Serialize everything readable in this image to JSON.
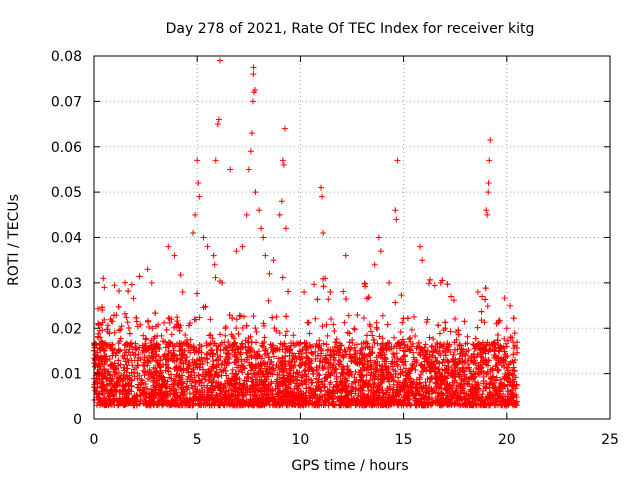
{
  "chart_data": {
    "type": "scatter",
    "title": "Day 278 of 2021, Rate Of TEC Index for receiver kitg",
    "xlabel": "GPS time / hours",
    "ylabel": "ROTI / TECUs",
    "xlim": [
      0,
      25
    ],
    "ylim": [
      0,
      0.08
    ],
    "x_ticks": [
      "0",
      "5",
      "10",
      "15",
      "20",
      "25"
    ],
    "y_ticks": [
      "0",
      "0.01",
      "0.02",
      "0.03",
      "0.04",
      "0.05",
      "0.06",
      "0.07",
      "0.08"
    ],
    "grid": true,
    "marker": "+",
    "marker_color": "#ff0000",
    "series": [
      {
        "name": "ROTI",
        "x_range": [
          0,
          20.5
        ],
        "band_description": "dense cloud of points between about 0.002 and 0.02 TECUs for the whole 0–20.5 h span",
        "points": [
          [
            0.1,
            0.012
          ],
          [
            0.3,
            0.018
          ],
          [
            0.4,
            0.024
          ],
          [
            0.45,
            0.031
          ],
          [
            0.5,
            0.029
          ],
          [
            0.8,
            0.022
          ],
          [
            1.0,
            0.019
          ],
          [
            2.6,
            0.033
          ],
          [
            2.8,
            0.03
          ],
          [
            3.6,
            0.038
          ],
          [
            3.9,
            0.036
          ],
          [
            4.3,
            0.028
          ],
          [
            4.8,
            0.041
          ],
          [
            4.9,
            0.045
          ],
          [
            5.0,
            0.057
          ],
          [
            5.05,
            0.052
          ],
          [
            5.1,
            0.049
          ],
          [
            5.3,
            0.04
          ],
          [
            5.5,
            0.038
          ],
          [
            5.8,
            0.036
          ],
          [
            5.85,
            0.034
          ],
          [
            5.9,
            0.057
          ],
          [
            6.0,
            0.065
          ],
          [
            6.05,
            0.066
          ],
          [
            6.1,
            0.079
          ],
          [
            6.6,
            0.055
          ],
          [
            6.9,
            0.037
          ],
          [
            7.2,
            0.038
          ],
          [
            7.4,
            0.045
          ],
          [
            7.5,
            0.055
          ],
          [
            7.6,
            0.059
          ],
          [
            7.65,
            0.063
          ],
          [
            7.7,
            0.07
          ],
          [
            7.75,
            0.072
          ],
          [
            7.8,
            0.0725
          ],
          [
            7.72,
            0.076
          ],
          [
            7.73,
            0.0775
          ],
          [
            7.82,
            0.05
          ],
          [
            8.0,
            0.046
          ],
          [
            8.1,
            0.042
          ],
          [
            8.2,
            0.04
          ],
          [
            8.3,
            0.036
          ],
          [
            8.5,
            0.032
          ],
          [
            8.7,
            0.035
          ],
          [
            9.0,
            0.045
          ],
          [
            9.1,
            0.048
          ],
          [
            9.15,
            0.057
          ],
          [
            9.2,
            0.056
          ],
          [
            9.25,
            0.064
          ],
          [
            9.3,
            0.042
          ],
          [
            11.0,
            0.051
          ],
          [
            11.05,
            0.049
          ],
          [
            11.1,
            0.041
          ],
          [
            11.2,
            0.031
          ],
          [
            12.2,
            0.036
          ],
          [
            13.6,
            0.034
          ],
          [
            13.8,
            0.04
          ],
          [
            13.9,
            0.037
          ],
          [
            14.3,
            0.03
          ],
          [
            14.6,
            0.046
          ],
          [
            14.65,
            0.044
          ],
          [
            14.7,
            0.057
          ],
          [
            15.8,
            0.038
          ],
          [
            15.9,
            0.035
          ],
          [
            16.8,
            0.03
          ],
          [
            17.3,
            0.027
          ],
          [
            18.6,
            0.028
          ],
          [
            18.8,
            0.027
          ],
          [
            19.0,
            0.046
          ],
          [
            19.05,
            0.045
          ],
          [
            19.1,
            0.05
          ],
          [
            19.12,
            0.052
          ],
          [
            19.15,
            0.057
          ],
          [
            19.2,
            0.0615
          ],
          [
            19.5,
            0.021
          ],
          [
            20.0,
            0.02
          ],
          [
            20.4,
            0.013
          ]
        ]
      }
    ]
  }
}
